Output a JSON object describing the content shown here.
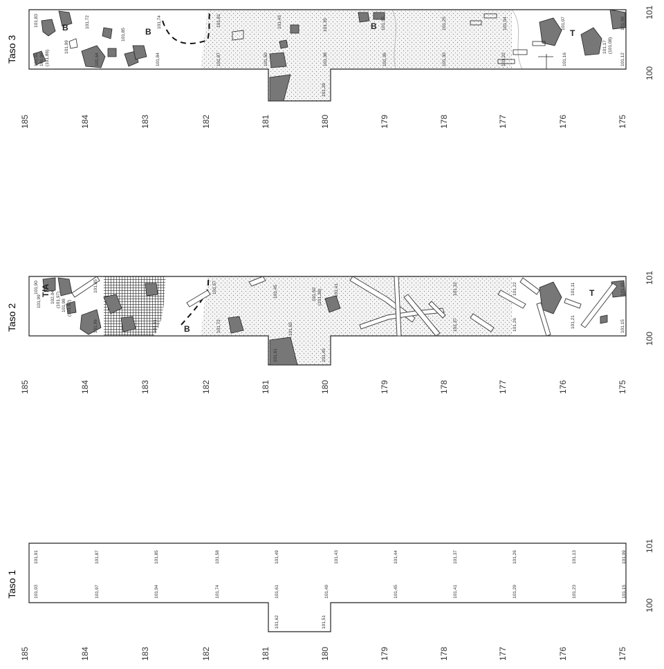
{
  "panels": [
    {
      "title": "Taso 1",
      "y_axis_labels": [
        "185",
        "184",
        "183",
        "182",
        "181",
        "180",
        "179",
        "178",
        "177",
        "176",
        "175"
      ],
      "x_axis_labels": [
        "100",
        "101"
      ],
      "levels_left": [
        "101,03",
        "101,97",
        "101,94",
        "101,74",
        "101,61",
        "101,49",
        "101,45",
        "101,41",
        "101,29",
        "101,23",
        "101,15"
      ],
      "levels_right": [
        "101,91",
        "101,87",
        "101,85",
        "101,58",
        "101,49",
        "101,43",
        "101,44",
        "101,37",
        "101,26",
        "101,13",
        "101,09"
      ],
      "levels_extension": [
        "101,62",
        "101,51"
      ]
    },
    {
      "title": "Taso 2",
      "y_axis_labels": [
        "185",
        "184",
        "183",
        "182",
        "181",
        "180",
        "179",
        "178",
        "177",
        "176",
        "175"
      ],
      "x_axis_labels": [
        "100",
        "101"
      ],
      "zone_labels": [
        "T/A",
        "B",
        "T"
      ],
      "levels": [
        "101,99",
        "102,04",
        "(101,97)",
        "101,98",
        "(101,92)",
        "101,90",
        "101,85",
        "101,96",
        "101,81",
        "101,57",
        "101,72",
        "101,45",
        "101,65",
        "101,50",
        "(101,38)",
        "101,41",
        "101,61",
        "101,45",
        "101,37",
        "101,32",
        "101,26",
        "101,22",
        "101,21",
        "101,11",
        "101,15",
        "101,05"
      ]
    },
    {
      "title": "Taso 3",
      "y_axis_labels": [
        "185",
        "184",
        "183",
        "182",
        "181",
        "180",
        "179",
        "178",
        "177",
        "176",
        "175"
      ],
      "x_axis_labels": [
        "100",
        "101"
      ],
      "zone_labels": [
        "B",
        "B",
        "B",
        "T"
      ],
      "levels": [
        "101,83",
        "101,92",
        "101,96",
        "(101,86)",
        "101,99",
        "101,72",
        "101,64",
        "101,85",
        "101,84",
        "101,74",
        "101,81",
        "101,87",
        "101,50",
        "101,43",
        "101,35",
        "101,38",
        "101,39",
        "101,33",
        "101,36",
        "101,30",
        "101,25",
        "101,22",
        "101,04",
        "101,16",
        "101,07",
        "101,17",
        "(101,08)",
        "101,12",
        "101,06"
      ]
    }
  ],
  "colors": {
    "line": "#333333",
    "stone_fill": "#777777",
    "dot_fill": "#e2e2e2",
    "grid_fill": "#555555"
  }
}
